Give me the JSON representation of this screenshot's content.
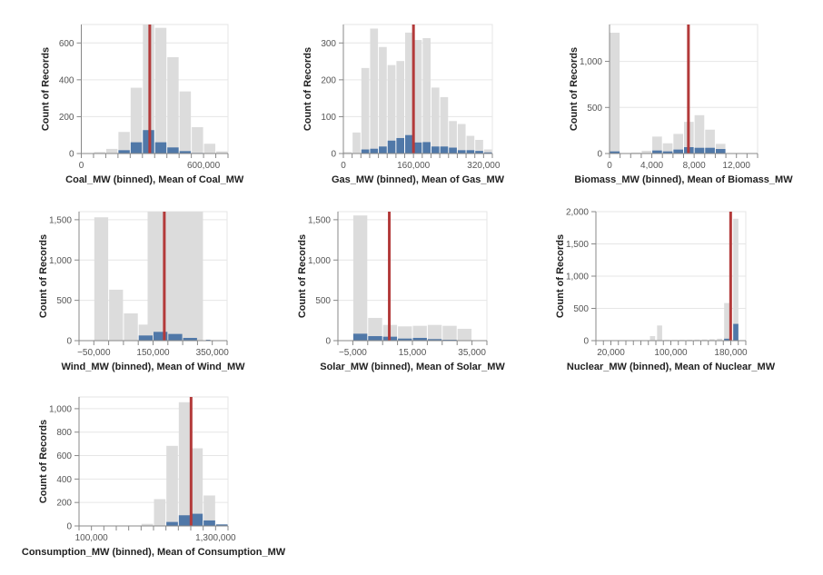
{
  "colors": {
    "all": "#dcdcdc",
    "selected": "#5078a8",
    "mean": "#b33a3a",
    "grid": "#e6e6e6",
    "axis": "#888888"
  },
  "chart_data": [
    {
      "type": "bar",
      "title": "",
      "xlabel": "Coal_MW (binned), Mean of Coal_MW",
      "ylabel": "Count of Records",
      "xlim": [
        0,
        720000
      ],
      "x_tick_step": 60000,
      "x_tick_labels": [
        0,
        600000
      ],
      "ylim": [
        0,
        700
      ],
      "y_ticks": [
        0,
        200,
        400,
        600
      ],
      "grid": true,
      "all_bins": [
        [
          60000,
          120000,
          8
        ],
        [
          120000,
          180000,
          25
        ],
        [
          180000,
          240000,
          117
        ],
        [
          240000,
          300000,
          357
        ],
        [
          300000,
          360000,
          760
        ],
        [
          360000,
          420000,
          682
        ],
        [
          420000,
          480000,
          523
        ],
        [
          480000,
          540000,
          337
        ],
        [
          540000,
          600000,
          143
        ],
        [
          600000,
          660000,
          53
        ],
        [
          660000,
          720000,
          12
        ]
      ],
      "selected_bins": [
        [
          180000,
          240000,
          18
        ],
        [
          240000,
          300000,
          61
        ],
        [
          300000,
          360000,
          127
        ],
        [
          360000,
          420000,
          61
        ],
        [
          420000,
          480000,
          33
        ],
        [
          480000,
          540000,
          13
        ],
        [
          540000,
          600000,
          3
        ]
      ],
      "mean": 336000
    },
    {
      "type": "bar",
      "title": "",
      "xlabel": "Gas_MW (binned), Mean of Gas_MW",
      "ylabel": "Count of Records",
      "xlim": [
        0,
        340000
      ],
      "x_tick_step": 20000,
      "x_tick_labels": [
        0,
        160000,
        320000
      ],
      "ylim": [
        0,
        350
      ],
      "y_ticks": [
        0,
        100,
        200,
        300
      ],
      "grid": true,
      "all_bins": [
        [
          0,
          20000,
          4
        ],
        [
          20000,
          40000,
          57
        ],
        [
          40000,
          60000,
          232
        ],
        [
          60000,
          80000,
          339
        ],
        [
          80000,
          100000,
          289
        ],
        [
          100000,
          120000,
          240
        ],
        [
          120000,
          140000,
          251
        ],
        [
          140000,
          160000,
          328
        ],
        [
          160000,
          180000,
          308
        ],
        [
          180000,
          200000,
          313
        ],
        [
          200000,
          220000,
          179
        ],
        [
          220000,
          240000,
          153
        ],
        [
          240000,
          260000,
          88
        ],
        [
          260000,
          280000,
          80
        ],
        [
          280000,
          300000,
          48
        ],
        [
          300000,
          320000,
          37
        ],
        [
          320000,
          340000,
          11
        ]
      ],
      "selected_bins": [
        [
          40000,
          60000,
          11
        ],
        [
          60000,
          80000,
          13
        ],
        [
          80000,
          100000,
          19
        ],
        [
          100000,
          120000,
          35
        ],
        [
          120000,
          140000,
          42
        ],
        [
          140000,
          160000,
          50
        ],
        [
          160000,
          180000,
          30
        ],
        [
          180000,
          200000,
          31
        ],
        [
          200000,
          220000,
          19
        ],
        [
          220000,
          240000,
          19
        ],
        [
          240000,
          260000,
          16
        ],
        [
          260000,
          280000,
          9
        ],
        [
          280000,
          300000,
          9
        ],
        [
          300000,
          320000,
          7
        ],
        [
          320000,
          340000,
          3
        ]
      ],
      "mean": 160000
    },
    {
      "type": "bar",
      "title": "",
      "xlabel": "Biomass_MW (binned), Mean of Biomass_MW",
      "ylabel": "Count of Records",
      "xlim": [
        0,
        14000
      ],
      "x_tick_step": 1000,
      "x_tick_labels": [
        0,
        4000,
        8000,
        12000
      ],
      "ylim": [
        0,
        1400
      ],
      "y_ticks": [
        0,
        500,
        1000
      ],
      "grid": true,
      "all_bins": [
        [
          0,
          1000,
          1311
        ],
        [
          2000,
          3000,
          10
        ],
        [
          3000,
          4000,
          30
        ],
        [
          4000,
          5000,
          184
        ],
        [
          5000,
          6000,
          111
        ],
        [
          6000,
          7000,
          213
        ],
        [
          7000,
          8000,
          344
        ],
        [
          8000,
          9000,
          416
        ],
        [
          9000,
          10000,
          259
        ],
        [
          10000,
          11000,
          105
        ]
      ],
      "selected_bins": [
        [
          0,
          1000,
          23
        ],
        [
          4000,
          5000,
          33
        ],
        [
          5000,
          6000,
          23
        ],
        [
          6000,
          7000,
          43
        ],
        [
          7000,
          8000,
          69
        ],
        [
          8000,
          9000,
          62
        ],
        [
          9000,
          10000,
          62
        ],
        [
          10000,
          11000,
          49
        ]
      ],
      "mean": 7460
    },
    {
      "type": "bar",
      "title": "",
      "xlabel": "Wind_MW (binned), Mean of Wind_MW",
      "ylabel": "Count of Records",
      "xlim": [
        -100000,
        400000
      ],
      "x_tick_step": 50000,
      "x_tick_labels": [
        -50000,
        150000,
        350000
      ],
      "ylim": [
        0,
        1600
      ],
      "y_ticks": [
        0,
        500,
        1000,
        1500
      ],
      "grid": true,
      "all_bins": [
        [
          -50000,
          0,
          1530
        ],
        [
          0,
          50000,
          632
        ],
        [
          50000,
          100000,
          338
        ],
        [
          100000,
          150000,
          199
        ],
        [
          130000,
          320000,
          1700
        ]
      ],
      "selected_bins": [
        [
          100000,
          150000,
          64
        ],
        [
          150000,
          200000,
          109
        ],
        [
          200000,
          250000,
          83
        ],
        [
          250000,
          300000,
          34
        ],
        [
          327000,
          345000,
          11
        ]
      ],
      "mean": 188000
    },
    {
      "type": "bar",
      "title": "",
      "xlabel": "Solar_MW (binned), Mean of Solar_MW",
      "ylabel": "Count of Records",
      "xlim": [
        -10000,
        40000
      ],
      "x_tick_step": 5000,
      "x_tick_labels": [
        -5000,
        15000,
        35000
      ],
      "ylim": [
        0,
        1600
      ],
      "y_ticks": [
        0,
        500,
        1000,
        1500
      ],
      "grid": true,
      "all_bins": [
        [
          -5000,
          0,
          1553
        ],
        [
          0,
          5000,
          282
        ],
        [
          5000,
          10000,
          195
        ],
        [
          10000,
          15000,
          177
        ],
        [
          15000,
          20000,
          184
        ],
        [
          20000,
          25000,
          195
        ],
        [
          25000,
          30000,
          184
        ],
        [
          30000,
          35000,
          147
        ]
      ],
      "selected_bins": [
        [
          -5000,
          0,
          86
        ],
        [
          0,
          5000,
          56
        ],
        [
          5000,
          10000,
          49
        ],
        [
          10000,
          15000,
          26
        ],
        [
          15000,
          20000,
          34
        ],
        [
          20000,
          25000,
          19
        ],
        [
          25000,
          30000,
          11
        ]
      ],
      "mean": 7240
    },
    {
      "type": "bar",
      "title": "",
      "xlabel": "Nuclear_MW (binned), Mean of Nuclear_MW",
      "ylabel": "Count of Records",
      "xlim": [
        0,
        200000
      ],
      "x_tick_step": 10000,
      "x_tick_labels": [
        20000,
        100000,
        180000
      ],
      "ylim": [
        0,
        2000
      ],
      "y_ticks": [
        0,
        500,
        1000,
        1500,
        2000
      ],
      "grid": true,
      "all_bins": [
        [
          71500,
          79600,
          71
        ],
        [
          81000,
          89000,
          235
        ],
        [
          91000,
          99000,
          12
        ],
        [
          101000,
          109000,
          10
        ],
        [
          111000,
          119000,
          12
        ],
        [
          121000,
          129000,
          14
        ],
        [
          131000,
          139000,
          16
        ],
        [
          141000,
          149000,
          18
        ],
        [
          151000,
          159000,
          22
        ],
        [
          161000,
          169000,
          30
        ],
        [
          170500,
          178600,
          55
        ],
        [
          170500,
          178600,
          583
        ],
        [
          182600,
          190700,
          1890
        ]
      ],
      "selected_bins": [
        [
          170500,
          178600,
          30
        ],
        [
          182600,
          190700,
          260
        ]
      ],
      "mean": 179800
    },
    {
      "type": "bar",
      "title": "",
      "xlabel": "Consumption_MW (binned), Mean of Consumption_MW",
      "ylabel": "Count of Records",
      "xlim": [
        -20000,
        1420000
      ],
      "x_tick_step": 120000,
      "x_tick_labels": [
        100000,
        1300000
      ],
      "ylim": [
        0,
        1100
      ],
      "y_ticks": [
        0,
        200,
        400,
        600,
        800,
        1000
      ],
      "grid": true,
      "all_bins": [
        [
          460000,
          580000,
          3
        ],
        [
          580000,
          700000,
          18
        ],
        [
          700000,
          820000,
          229
        ],
        [
          820000,
          940000,
          683
        ],
        [
          940000,
          1060000,
          1055
        ],
        [
          1060000,
          1180000,
          662
        ],
        [
          1180000,
          1300000,
          260
        ],
        [
          1300000,
          1420000,
          13
        ]
      ],
      "selected_bins": [
        [
          820000,
          940000,
          34
        ],
        [
          940000,
          1060000,
          91
        ],
        [
          1060000,
          1180000,
          104
        ],
        [
          1180000,
          1300000,
          47
        ],
        [
          1300000,
          1420000,
          13
        ]
      ],
      "mean": 1063000
    }
  ]
}
